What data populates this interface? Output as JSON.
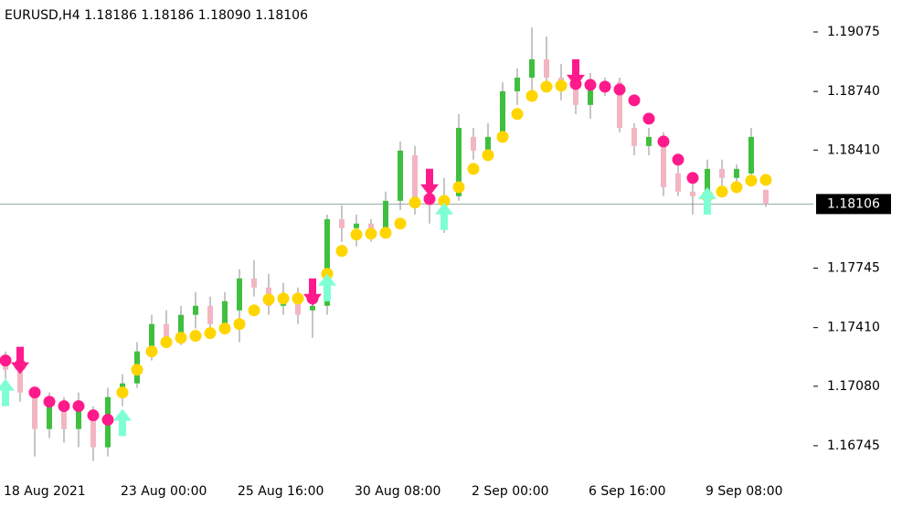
{
  "chart_data": {
    "type": "candlestick",
    "title": "EURUSD,H4  1.18186 1.18186 1.18090 1.18106",
    "categories": [
      "18 Aug 2021",
      null,
      null,
      null,
      null,
      null,
      null,
      null,
      "23 Aug 00:00",
      null,
      null,
      null,
      null,
      null,
      null,
      null,
      "25 Aug 16:00",
      null,
      null,
      null,
      null,
      null,
      null,
      null,
      "30 Aug 08:00",
      null,
      null,
      null,
      null,
      null,
      null,
      null,
      "2 Sep 00:00",
      null,
      null,
      null,
      null,
      null,
      null,
      null,
      "6 Sep 16:00",
      null,
      null,
      null,
      null,
      null,
      null,
      null,
      "9 Sep 08:00",
      null,
      null,
      null,
      null
    ],
    "open": [
      1.17209,
      1.17173,
      1.17045,
      1.16839,
      1.16968,
      1.16839,
      1.16942,
      1.16736,
      1.17019,
      1.17096,
      1.17276,
      1.1743,
      1.17353,
      1.17482,
      1.17533,
      1.1743,
      1.17507,
      1.17687,
      1.17636,
      1.17533,
      1.17585,
      1.17507,
      1.17533,
      1.18021,
      1.1797,
      1.17996,
      1.17944,
      1.18124,
      1.18381,
      1.1815,
      1.18099,
      1.1815,
      1.18484,
      1.18407,
      1.18484,
      1.18741,
      1.18818,
      1.18921,
      1.18818,
      1.18767,
      1.18664,
      1.18767,
      1.18792,
      1.18535,
      1.18433,
      1.18484,
      1.18278,
      1.18176,
      1.1815,
      1.18304,
      1.18253,
      1.18278,
      1.18186
    ],
    "high": [
      1.17276,
      1.17225,
      1.17071,
      1.17045,
      1.17019,
      1.17045,
      1.16968,
      1.17071,
      1.17148,
      1.17328,
      1.17482,
      1.17507,
      1.17533,
      1.1761,
      1.17585,
      1.1761,
      1.17739,
      1.1779,
      1.17713,
      1.17662,
      1.17636,
      1.1761,
      1.18047,
      1.18099,
      1.18047,
      1.18021,
      1.18176,
      1.18458,
      1.18433,
      1.18227,
      1.18253,
      1.18613,
      1.18535,
      1.18561,
      1.18792,
      1.1887,
      1.19101,
      1.19049,
      1.18895,
      1.18818,
      1.18844,
      1.18818,
      1.18818,
      1.18561,
      1.18535,
      1.1851,
      1.1833,
      1.18227,
      1.18356,
      1.18356,
      1.1833,
      1.18535,
      1.18186
    ],
    "low": [
      1.17122,
      1.16993,
      1.16685,
      1.16788,
      1.16762,
      1.16736,
      1.16659,
      1.16685,
      1.16968,
      1.17071,
      1.17225,
      1.17302,
      1.17312,
      1.17405,
      1.17353,
      1.17379,
      1.17328,
      1.17585,
      1.17482,
      1.17482,
      1.1743,
      1.17353,
      1.17482,
      1.17893,
      1.17867,
      1.17893,
      1.17919,
      1.18073,
      1.18047,
      1.17996,
      1.17944,
      1.18124,
      1.18356,
      1.18381,
      1.18458,
      1.18664,
      1.18741,
      1.18767,
      1.1869,
      1.18613,
      1.18587,
      1.18715,
      1.1851,
      1.18381,
      1.18381,
      1.1815,
      1.1815,
      1.18047,
      1.18099,
      1.18201,
      1.18227,
      1.18227,
      1.1809
    ],
    "close": [
      1.17173,
      1.17045,
      1.16839,
      1.16968,
      1.16839,
      1.16942,
      1.16736,
      1.17019,
      1.17096,
      1.17276,
      1.1743,
      1.17353,
      1.17482,
      1.17533,
      1.1743,
      1.17559,
      1.17687,
      1.17636,
      1.17533,
      1.17585,
      1.17482,
      1.17533,
      1.18021,
      1.1797,
      1.17996,
      1.17944,
      1.18124,
      1.18407,
      1.18099,
      1.18099,
      1.1815,
      1.18535,
      1.18407,
      1.18484,
      1.18741,
      1.18818,
      1.18921,
      1.18818,
      1.18767,
      1.18664,
      1.18767,
      1.18792,
      1.18535,
      1.18433,
      1.18484,
      1.18201,
      1.18176,
      1.1815,
      1.18304,
      1.18253,
      1.18304,
      1.18484,
      1.18106
    ],
    "up_dots": [
      null,
      null,
      null,
      null,
      null,
      null,
      null,
      null,
      1.17045,
      1.17173,
      1.17276,
      1.17328,
      1.17353,
      1.17364,
      1.17379,
      1.17405,
      1.1743,
      1.17507,
      1.17569,
      1.17574,
      1.17574,
      null,
      1.17713,
      1.17842,
      1.17934,
      1.17939,
      1.17944,
      1.17996,
      1.18114,
      null,
      1.18124,
      1.18201,
      1.18304,
      1.18381,
      1.18484,
      1.18613,
      1.18715,
      1.18767,
      1.18772,
      null,
      null,
      null,
      null,
      null,
      null,
      null,
      null,
      null,
      1.1815,
      1.18176,
      1.18201,
      1.18238,
      1.18242
    ],
    "down_dots": [
      1.17225,
      1.17199,
      1.17045,
      1.16993,
      1.16968,
      1.16968,
      1.16916,
      1.16891,
      null,
      null,
      null,
      null,
      null,
      null,
      null,
      null,
      null,
      null,
      null,
      null,
      null,
      1.17574,
      null,
      null,
      null,
      null,
      null,
      null,
      null,
      1.18135,
      null,
      null,
      null,
      null,
      null,
      null,
      null,
      null,
      null,
      1.18782,
      1.18777,
      1.18767,
      1.18751,
      1.1869,
      1.18587,
      1.18458,
      1.18356,
      1.18253,
      null,
      null,
      null,
      null,
      null
    ],
    "up_arrows": [
      1.17122,
      null,
      null,
      null,
      null,
      null,
      null,
      null,
      1.16953,
      null,
      null,
      null,
      null,
      null,
      null,
      null,
      null,
      null,
      null,
      null,
      null,
      null,
      1.17713,
      null,
      null,
      null,
      null,
      null,
      null,
      null,
      1.18114,
      null,
      null,
      null,
      null,
      null,
      null,
      null,
      null,
      null,
      null,
      null,
      null,
      null,
      null,
      null,
      null,
      null,
      1.18201,
      null,
      null,
      null,
      null
    ],
    "down_arrows": [
      null,
      1.17148,
      null,
      null,
      null,
      null,
      null,
      null,
      null,
      null,
      null,
      null,
      null,
      null,
      null,
      null,
      null,
      null,
      null,
      null,
      null,
      1.17533,
      null,
      null,
      null,
      null,
      null,
      null,
      null,
      1.1815,
      null,
      null,
      null,
      null,
      null,
      null,
      null,
      null,
      null,
      1.18767,
      null,
      null,
      null,
      null,
      null,
      null,
      null,
      null,
      null,
      null,
      null,
      null,
      null
    ],
    "current_price": 1.18106,
    "ylim": [
      1.1658,
      1.19255
    ],
    "yticks": [
      1.16745,
      {
        "value": 1.1708,
        "label": "1.17080"
      },
      {
        "value": 1.1741,
        "label": "1.17410"
      },
      1.17745,
      {
        "value": 1.1841,
        "label": "1.18410"
      },
      {
        "value": 1.1874,
        "label": "1.18740"
      },
      1.19075
    ],
    "grid": false,
    "bull_color": "#3fbf3f",
    "bear_color": "#f2b6c2",
    "wick_color": "#8c8c8c",
    "up_dot_color": "#ffd500",
    "down_dot_color": "#ff1a8c",
    "up_arrow_color": "#7fffd4",
    "down_arrow_color": "#ff1a8c",
    "price_line_color": "#8fa89c"
  }
}
